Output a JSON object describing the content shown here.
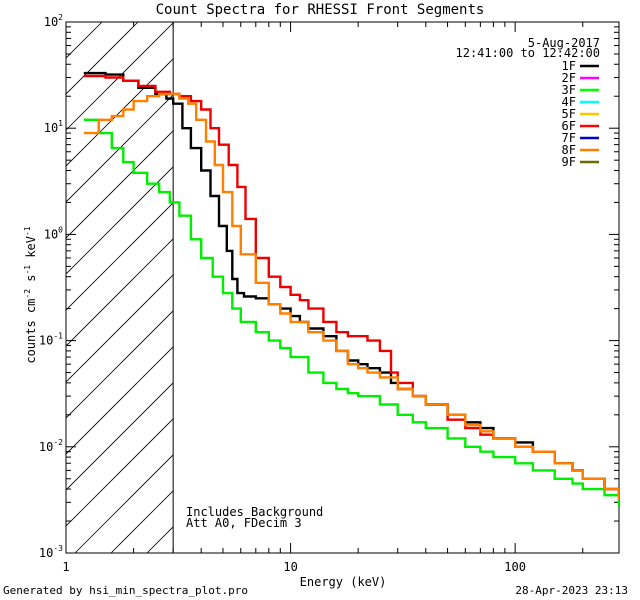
{
  "chart_data": {
    "type": "line",
    "title": "Count Spectra for RHESSI Front Segments",
    "date": "5-Aug-2017",
    "time_range": "12:41:00 to 12:42:00",
    "xlabel": "Energy (keV)",
    "ylabel": "counts cm",
    "ylabel_exp1": "-2",
    "ylabel_mid": " s",
    "ylabel_exp2": "-1",
    "ylabel_end": " keV",
    "ylabel_exp3": "-1",
    "xscale": "log",
    "yscale": "log",
    "xlim": [
      1,
      290
    ],
    "ylim": [
      0.001,
      100
    ],
    "x_ticks": [
      {
        "label": "1",
        "value": 1
      },
      {
        "label": "10",
        "value": 10
      },
      {
        "label": "100",
        "value": 100
      }
    ],
    "y_ticks": [
      {
        "base": "10",
        "exp": "-3",
        "value": 0.001
      },
      {
        "base": "10",
        "exp": "-2",
        "value": 0.01
      },
      {
        "base": "10",
        "exp": "-1",
        "value": 0.1
      },
      {
        "base": "10",
        "exp": "0",
        "value": 1
      },
      {
        "base": "10",
        "exp": "1",
        "value": 10
      },
      {
        "base": "10",
        "exp": "2",
        "value": 100
      }
    ],
    "hatched_region_x": [
      1,
      3
    ],
    "annotations": [
      "Includes Background",
      "Att A0, FDecim 3"
    ],
    "legend": [
      {
        "name": "1F",
        "color": "#000000"
      },
      {
        "name": "2F",
        "color": "#ff00ff"
      },
      {
        "name": "3F",
        "color": "#00ff00"
      },
      {
        "name": "4F",
        "color": "#00ffff"
      },
      {
        "name": "5F",
        "color": "#ffc800"
      },
      {
        "name": "6F",
        "color": "#ff0000"
      },
      {
        "name": "7F",
        "color": "#0000cc"
      },
      {
        "name": "8F",
        "color": "#ff8000"
      },
      {
        "name": "9F",
        "color": "#6b6b00"
      }
    ],
    "series": [
      {
        "name": "1F",
        "color": "#000000",
        "x": [
          1.2,
          1.5,
          1.8,
          2.1,
          2.5,
          2.8,
          3.0,
          3.3,
          3.6,
          4.0,
          4.4,
          4.8,
          5.2,
          5.5,
          5.8,
          6.2,
          7,
          8,
          9,
          10,
          11,
          12,
          14,
          16,
          18,
          20,
          22,
          25,
          28,
          30,
          35,
          40,
          50,
          60,
          70,
          80,
          100,
          120,
          150,
          180,
          200,
          250,
          290
        ],
        "y": [
          33,
          32,
          28,
          24,
          21,
          19,
          17,
          10,
          6.5,
          4.0,
          2.3,
          1.2,
          0.7,
          0.38,
          0.28,
          0.26,
          0.25,
          0.22,
          0.2,
          0.17,
          0.15,
          0.13,
          0.11,
          0.08,
          0.065,
          0.06,
          0.055,
          0.05,
          0.04,
          0.035,
          0.03,
          0.025,
          0.02,
          0.017,
          0.015,
          0.012,
          0.011,
          0.009,
          0.007,
          0.006,
          0.005,
          0.004,
          0.0035
        ]
      },
      {
        "name": "3F",
        "color": "#00ee00",
        "x": [
          1.2,
          1.4,
          1.6,
          1.8,
          2.0,
          2.3,
          2.6,
          2.9,
          3.2,
          3.6,
          4.0,
          4.5,
          5,
          5.5,
          6,
          7,
          8,
          9,
          10,
          12,
          14,
          16,
          18,
          20,
          25,
          30,
          35,
          40,
          50,
          60,
          70,
          80,
          100,
          120,
          150,
          180,
          200,
          250,
          290
        ],
        "y": [
          12,
          9,
          6.5,
          4.8,
          3.8,
          3.0,
          2.5,
          2.0,
          1.5,
          0.9,
          0.6,
          0.4,
          0.28,
          0.2,
          0.15,
          0.12,
          0.1,
          0.085,
          0.07,
          0.05,
          0.04,
          0.035,
          0.032,
          0.03,
          0.025,
          0.02,
          0.017,
          0.015,
          0.012,
          0.01,
          0.009,
          0.008,
          0.007,
          0.006,
          0.005,
          0.0045,
          0.004,
          0.0035,
          0.0028
        ]
      },
      {
        "name": "6F",
        "color": "#ee0000",
        "x": [
          1.2,
          1.5,
          1.8,
          2.1,
          2.5,
          2.9,
          3.2,
          3.6,
          4.0,
          4.4,
          4.8,
          5.3,
          5.8,
          6.3,
          7,
          8,
          9,
          10,
          11,
          12,
          14,
          16,
          18,
          20,
          22,
          25,
          28,
          30,
          35,
          40,
          50,
          60,
          70,
          80,
          100,
          120,
          150,
          180,
          200,
          250,
          290
        ],
        "y": [
          31,
          30,
          28,
          25,
          22,
          21,
          20,
          18,
          15,
          10,
          7,
          4.5,
          2.8,
          1.4,
          0.6,
          0.4,
          0.32,
          0.27,
          0.24,
          0.2,
          0.15,
          0.12,
          0.11,
          0.11,
          0.1,
          0.08,
          0.05,
          0.04,
          0.03,
          0.025,
          0.018,
          0.015,
          0.013,
          0.012,
          0.01,
          0.009,
          0.007,
          0.006,
          0.005,
          0.004,
          0.0035
        ]
      },
      {
        "name": "8F",
        "color": "#ff8000",
        "x": [
          1.2,
          1.4,
          1.6,
          1.8,
          2.0,
          2.3,
          2.6,
          2.9,
          3.2,
          3.5,
          3.8,
          4.2,
          4.6,
          5.0,
          5.5,
          6.0,
          7,
          8,
          9,
          10,
          12,
          14,
          16,
          18,
          20,
          22,
          25,
          30,
          35,
          40,
          50,
          60,
          70,
          80,
          100,
          120,
          150,
          180,
          200,
          250,
          290
        ],
        "y": [
          9,
          12,
          13,
          15,
          18,
          20,
          21,
          21,
          19,
          17,
          12,
          7.5,
          4.5,
          2.5,
          1.2,
          0.65,
          0.35,
          0.22,
          0.18,
          0.15,
          0.12,
          0.1,
          0.08,
          0.06,
          0.055,
          0.05,
          0.045,
          0.035,
          0.03,
          0.025,
          0.02,
          0.016,
          0.014,
          0.012,
          0.01,
          0.009,
          0.007,
          0.006,
          0.005,
          0.004,
          0.0033
        ]
      }
    ]
  },
  "footer": {
    "left": "Generated by hsi_min_spectra_plot.pro",
    "right": "28-Apr-2023 23:13"
  }
}
